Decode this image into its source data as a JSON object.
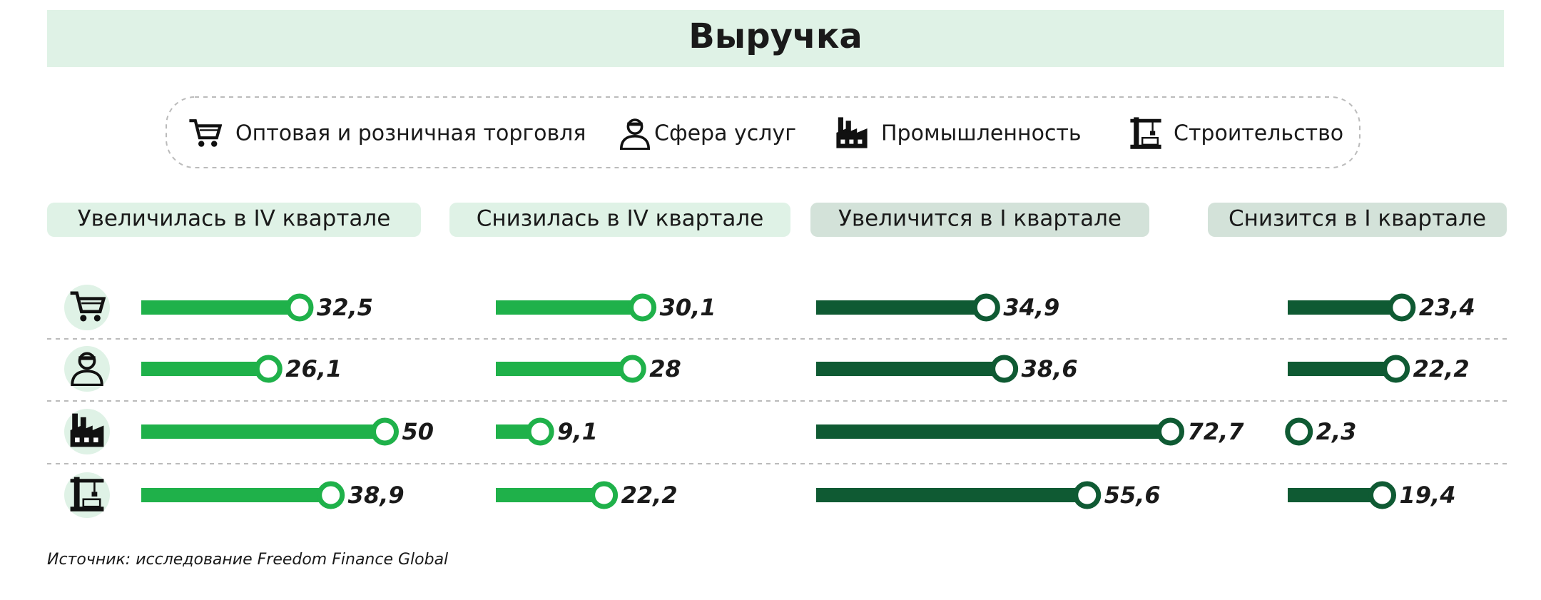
{
  "chart_data": {
    "type": "bar",
    "title": "Выручка",
    "categories": [
      "Оптовая и розничная торговля",
      "Сфера услуг",
      "Промышленность",
      "Строительство"
    ],
    "series": [
      {
        "name": "Увеличилась в IV квартале",
        "color": "#1fb14a",
        "values": [
          32.5,
          26.1,
          50,
          38.9
        ],
        "value_labels": [
          "32,5",
          "26,1",
          "50",
          "38,9"
        ]
      },
      {
        "name": "Снизилась в IV квартале",
        "color": "#1fb14a",
        "values": [
          30.1,
          28,
          9.1,
          22.2
        ],
        "value_labels": [
          "30,1",
          "28",
          "9,1",
          "22,2"
        ]
      },
      {
        "name": "Увеличится в I квартале",
        "color": "#0f5a33",
        "values": [
          34.9,
          38.6,
          72.7,
          55.6
        ],
        "value_labels": [
          "34,9",
          "38,6",
          "72,7",
          "55,6"
        ]
      },
      {
        "name": "Снизится в I квартале",
        "color": "#0f5a33",
        "values": [
          23.4,
          22.2,
          2.3,
          19.4
        ],
        "value_labels": [
          "23,4",
          "22,2",
          "2,3",
          "19,4"
        ]
      }
    ],
    "source": "Источник: исследование Freedom Finance Global"
  }
}
